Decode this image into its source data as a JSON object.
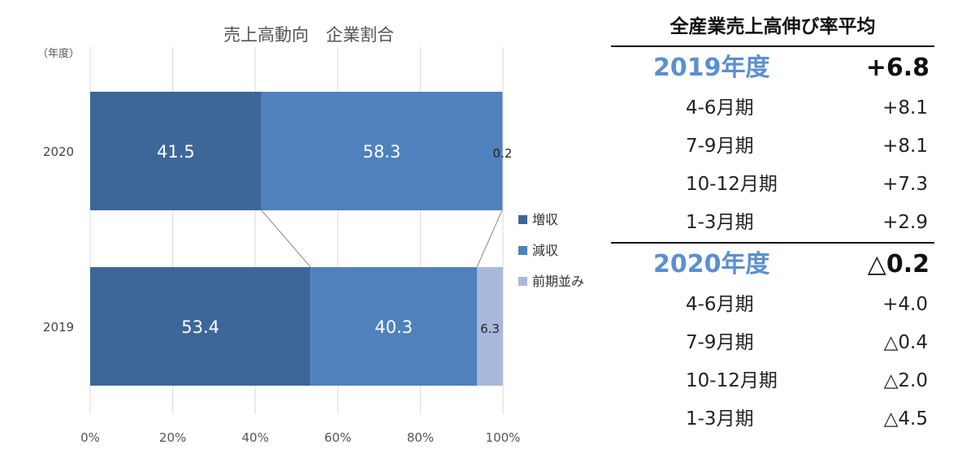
{
  "chart_data": {
    "type": "bar",
    "orientation": "horizontal",
    "stacked": true,
    "title": "売上高動向　企業割合",
    "year_axis_label": "（年度）",
    "categories": [
      "2020",
      "2019"
    ],
    "series": [
      {
        "name": "増収",
        "values": [
          41.5,
          53.4
        ],
        "color": "#3e6799",
        "label_color": "#ffffff"
      },
      {
        "name": "減収",
        "values": [
          58.3,
          40.3
        ],
        "color": "#4f81bd",
        "label_color": "#ffffff"
      },
      {
        "name": "前期並み",
        "values": [
          0.2,
          6.3
        ],
        "color": "#a9b8da",
        "label_color": "#222222"
      }
    ],
    "xlim": [
      0,
      100
    ],
    "x_ticks": [
      "0%",
      "20%",
      "40%",
      "60%",
      "80%",
      "100%"
    ],
    "grid": true,
    "legend_position": "right"
  },
  "table": {
    "title": "全産業売上高伸び率平均",
    "accent_color": "#5b8fd0",
    "sections": [
      {
        "year": "2019年度",
        "value": "+6.8",
        "rows": [
          {
            "label": "4-6月期",
            "value": "+8.1"
          },
          {
            "label": "7-9月期",
            "value": "+8.1"
          },
          {
            "label": "10-12月期",
            "value": "+7.3"
          },
          {
            "label": "1-3月期",
            "value": "+2.9"
          }
        ]
      },
      {
        "year": "2020年度",
        "value": "△0.2",
        "rows": [
          {
            "label": "4-6月期",
            "value": "+4.0"
          },
          {
            "label": "7-9月期",
            "value": "△0.4"
          },
          {
            "label": "10-12月期",
            "value": "△2.0"
          },
          {
            "label": "1-3月期",
            "value": "△4.5"
          }
        ]
      }
    ]
  }
}
